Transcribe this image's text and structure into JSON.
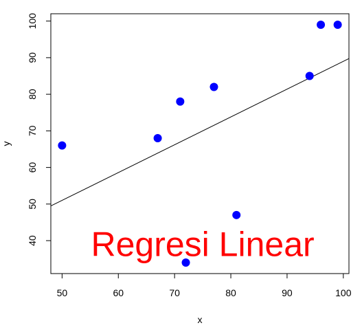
{
  "chart_data": {
    "type": "scatter",
    "xlabel": "x",
    "ylabel": "y",
    "xlim": [
      48,
      101
    ],
    "ylim": [
      31,
      102
    ],
    "x_ticks": [
      50,
      60,
      70,
      80,
      90,
      100
    ],
    "y_ticks": [
      40,
      50,
      60,
      70,
      80,
      90,
      100
    ],
    "points": [
      {
        "x": 50,
        "y": 66
      },
      {
        "x": 67,
        "y": 68
      },
      {
        "x": 71,
        "y": 78
      },
      {
        "x": 72,
        "y": 34
      },
      {
        "x": 77,
        "y": 82
      },
      {
        "x": 81,
        "y": 47
      },
      {
        "x": 94,
        "y": 85
      },
      {
        "x": 96,
        "y": 99
      },
      {
        "x": 99,
        "y": 99
      }
    ],
    "regression_line": {
      "intercept": 13.0,
      "slope": 0.76
    },
    "point_color": "#0000ff",
    "line_color": "#000000",
    "annotation": {
      "text": "Regresi Linear",
      "color": "#ff0000",
      "x": 75,
      "y": 39
    }
  }
}
